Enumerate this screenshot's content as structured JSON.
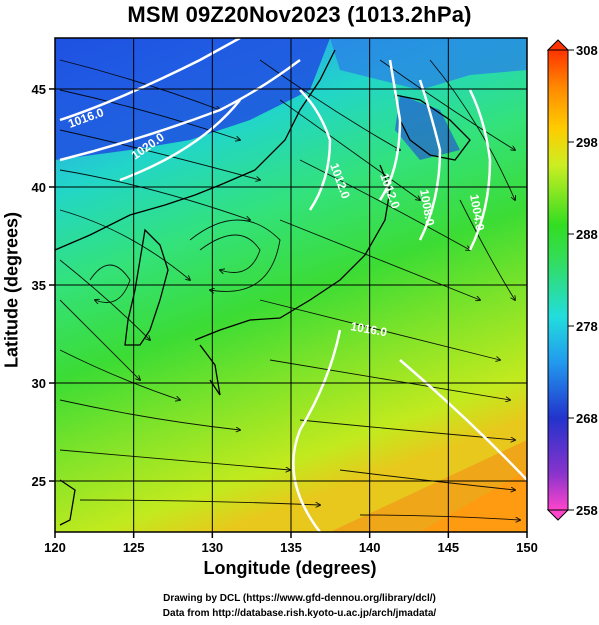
{
  "title": "MSM 09Z20Nov2023 (1013.2hPa)",
  "xaxis": {
    "label": "Longitude (degrees)",
    "ticks": [
      "120",
      "125",
      "130",
      "135",
      "140",
      "145",
      "150"
    ],
    "range": [
      120,
      150
    ]
  },
  "yaxis": {
    "label": "Latitude  (degrees)",
    "ticks": [
      "25",
      "30",
      "35",
      "40",
      "45"
    ],
    "range": [
      22.4,
      47.6
    ]
  },
  "colorbar": {
    "ticks": [
      "308",
      "298",
      "288",
      "278",
      "268",
      "258"
    ],
    "range": [
      258,
      308
    ]
  },
  "isobars": [
    "1016.0",
    "1012.0",
    "1020.0",
    "1016.0",
    "1012.0",
    "1008.0",
    "1004.0"
  ],
  "credits": {
    "line1": "Drawing by DCL (https://www.gfd-dennou.org/library/dcl/)",
    "line2": "Data from http://database.rish.kyoto-u.ac.jp/arch/jmadata/"
  },
  "colors": {
    "cold": "#2233cc",
    "cool": "#22ccee",
    "mid": "#33dd33",
    "warm": "#bbee22",
    "hot": "#ff8800"
  }
}
